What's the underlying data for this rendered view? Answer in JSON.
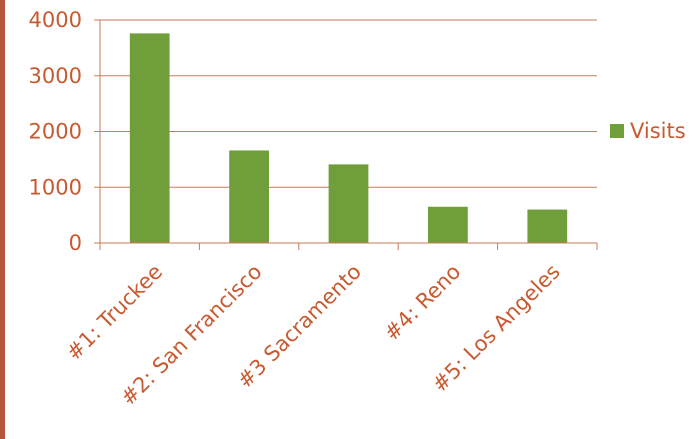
{
  "chart_data": {
    "type": "bar",
    "title": "",
    "xlabel": "",
    "ylabel": "",
    "categories": [
      "#1: Truckee",
      "#2: San Francisco",
      "#3 Sacramento",
      "#4: Reno",
      "#5: Los Angeles"
    ],
    "series": [
      {
        "name": "Visits",
        "values": [
          3760,
          1660,
          1410,
          650,
          600
        ]
      }
    ],
    "ylim": [
      0,
      4000
    ],
    "yticks": [
      "0",
      "1000",
      "2000",
      "3000",
      "4000"
    ],
    "grid": true,
    "legend": "right"
  },
  "colors": {
    "bar": "#6f9e3a",
    "text": "#c75a30",
    "grid": "#c97a5a",
    "border": "#b5563c"
  }
}
